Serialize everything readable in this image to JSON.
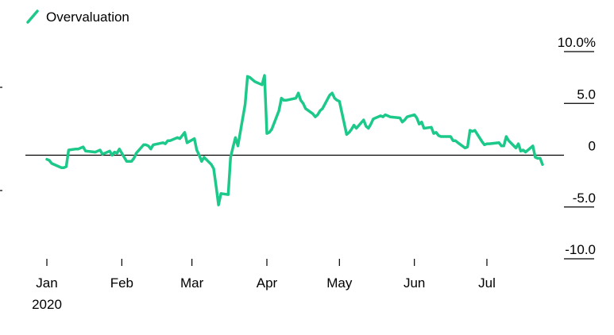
{
  "chart_data": {
    "type": "line",
    "title": "",
    "xlabel": "",
    "ylabel": "",
    "legend": {
      "position": "top-left",
      "entries": [
        "Overvaluation"
      ]
    },
    "ylim": [
      -10,
      10
    ],
    "y_ticks": [
      {
        "value": 10,
        "label": "10.0%"
      },
      {
        "value": 5,
        "label": "5.0"
      },
      {
        "value": 0,
        "label": "0"
      },
      {
        "value": -5,
        "label": "-5.0"
      },
      {
        "value": -10,
        "label": "-10.0"
      }
    ],
    "x_range": [
      "2020-01-01",
      "2020-07-24"
    ],
    "x_ticks": [
      {
        "date": "2020-01-01",
        "label": "Jan"
      },
      {
        "date": "2020-02-01",
        "label": "Feb"
      },
      {
        "date": "2020-03-01",
        "label": "Mar"
      },
      {
        "date": "2020-04-01",
        "label": "Apr"
      },
      {
        "date": "2020-05-01",
        "label": "May"
      },
      {
        "date": "2020-06-01",
        "label": "Jun"
      },
      {
        "date": "2020-07-01",
        "label": "Jul"
      }
    ],
    "x_year_label": "2020",
    "series": [
      {
        "name": "Overvaluation",
        "color": "#1DC98A",
        "points": [
          [
            "2020-01-01",
            -0.4
          ],
          [
            "2020-01-02",
            -0.5
          ],
          [
            "2020-01-03",
            -0.8
          ],
          [
            "2020-01-06",
            -1.1
          ],
          [
            "2020-01-07",
            -1.2
          ],
          [
            "2020-01-08",
            -1.2
          ],
          [
            "2020-01-09",
            -1.1
          ],
          [
            "2020-01-10",
            0.5
          ],
          [
            "2020-01-13",
            0.6
          ],
          [
            "2020-01-14",
            0.6
          ],
          [
            "2020-01-15",
            0.7
          ],
          [
            "2020-01-16",
            0.8
          ],
          [
            "2020-01-17",
            0.4
          ],
          [
            "2020-01-21",
            0.3
          ],
          [
            "2020-01-22",
            0.4
          ],
          [
            "2020-01-23",
            0.5
          ],
          [
            "2020-01-24",
            0.1
          ],
          [
            "2020-01-27",
            0.4
          ],
          [
            "2020-01-28",
            0.0
          ],
          [
            "2020-01-29",
            0.3
          ],
          [
            "2020-01-30",
            0.2
          ],
          [
            "2020-01-31",
            0.6
          ],
          [
            "2020-02-03",
            -0.6
          ],
          [
            "2020-02-04",
            -0.6
          ],
          [
            "2020-02-05",
            -0.6
          ],
          [
            "2020-02-06",
            -0.3
          ],
          [
            "2020-02-07",
            0.2
          ],
          [
            "2020-02-10",
            1.0
          ],
          [
            "2020-02-11",
            1.0
          ],
          [
            "2020-02-12",
            0.9
          ],
          [
            "2020-02-13",
            0.6
          ],
          [
            "2020-02-14",
            1.0
          ],
          [
            "2020-02-18",
            1.2
          ],
          [
            "2020-02-19",
            1.1
          ],
          [
            "2020-02-20",
            1.4
          ],
          [
            "2020-02-21",
            1.4
          ],
          [
            "2020-02-24",
            1.7
          ],
          [
            "2020-02-25",
            1.6
          ],
          [
            "2020-02-26",
            1.9
          ],
          [
            "2020-02-27",
            2.2
          ],
          [
            "2020-02-28",
            1.2
          ],
          [
            "2020-03-02",
            1.6
          ],
          [
            "2020-03-03",
            0.5
          ],
          [
            "2020-03-04",
            0.0
          ],
          [
            "2020-03-05",
            -0.6
          ],
          [
            "2020-03-06",
            -0.2
          ],
          [
            "2020-03-09",
            -0.9
          ],
          [
            "2020-03-10",
            -1.3
          ],
          [
            "2020-03-11",
            -3.0
          ],
          [
            "2020-03-12",
            -4.8
          ],
          [
            "2020-03-13",
            -3.7
          ],
          [
            "2020-03-16",
            -3.8
          ],
          [
            "2020-03-17",
            -0.2
          ],
          [
            "2020-03-18",
            0.8
          ],
          [
            "2020-03-19",
            1.7
          ],
          [
            "2020-03-20",
            0.9
          ],
          [
            "2020-03-23",
            4.9
          ],
          [
            "2020-03-24",
            7.6
          ],
          [
            "2020-03-25",
            7.5
          ],
          [
            "2020-03-26",
            7.3
          ],
          [
            "2020-03-27",
            7.1
          ],
          [
            "2020-03-30",
            6.8
          ],
          [
            "2020-03-31",
            7.7
          ],
          [
            "2020-04-01",
            2.1
          ],
          [
            "2020-04-02",
            2.2
          ],
          [
            "2020-04-03",
            2.5
          ],
          [
            "2020-04-06",
            4.3
          ],
          [
            "2020-04-07",
            5.5
          ],
          [
            "2020-04-08",
            5.3
          ],
          [
            "2020-04-09",
            5.3
          ],
          [
            "2020-04-13",
            5.5
          ],
          [
            "2020-04-14",
            6.0
          ],
          [
            "2020-04-15",
            5.3
          ],
          [
            "2020-04-16",
            5.0
          ],
          [
            "2020-04-17",
            4.5
          ],
          [
            "2020-04-20",
            4.0
          ],
          [
            "2020-04-21",
            3.7
          ],
          [
            "2020-04-22",
            3.9
          ],
          [
            "2020-04-23",
            4.3
          ],
          [
            "2020-04-24",
            4.5
          ],
          [
            "2020-04-27",
            5.8
          ],
          [
            "2020-04-28",
            6.0
          ],
          [
            "2020-04-29",
            5.5
          ],
          [
            "2020-04-30",
            5.3
          ],
          [
            "2020-05-01",
            5.2
          ],
          [
            "2020-05-04",
            2.0
          ],
          [
            "2020-05-05",
            2.2
          ],
          [
            "2020-05-06",
            2.5
          ],
          [
            "2020-05-07",
            2.9
          ],
          [
            "2020-05-08",
            2.6
          ],
          [
            "2020-05-11",
            3.4
          ],
          [
            "2020-05-12",
            2.8
          ],
          [
            "2020-05-13",
            2.6
          ],
          [
            "2020-05-14",
            3.0
          ],
          [
            "2020-05-15",
            3.5
          ],
          [
            "2020-05-18",
            3.8
          ],
          [
            "2020-05-19",
            3.7
          ],
          [
            "2020-05-20",
            3.9
          ],
          [
            "2020-05-21",
            3.8
          ],
          [
            "2020-05-22",
            3.7
          ],
          [
            "2020-05-26",
            3.6
          ],
          [
            "2020-05-27",
            3.2
          ],
          [
            "2020-05-28",
            3.4
          ],
          [
            "2020-05-29",
            3.7
          ],
          [
            "2020-06-01",
            3.9
          ],
          [
            "2020-06-02",
            3.6
          ],
          [
            "2020-06-03",
            3.0
          ],
          [
            "2020-06-04",
            3.2
          ],
          [
            "2020-06-05",
            2.6
          ],
          [
            "2020-06-08",
            2.7
          ],
          [
            "2020-06-09",
            2.1
          ],
          [
            "2020-06-10",
            2.2
          ],
          [
            "2020-06-11",
            1.9
          ],
          [
            "2020-06-12",
            1.8
          ],
          [
            "2020-06-15",
            1.8
          ],
          [
            "2020-06-16",
            1.8
          ],
          [
            "2020-06-17",
            1.4
          ],
          [
            "2020-06-18",
            1.4
          ],
          [
            "2020-06-19",
            1.2
          ],
          [
            "2020-06-22",
            0.7
          ],
          [
            "2020-06-23",
            0.8
          ],
          [
            "2020-06-24",
            2.4
          ],
          [
            "2020-06-25",
            2.3
          ],
          [
            "2020-06-26",
            2.4
          ],
          [
            "2020-06-29",
            1.3
          ],
          [
            "2020-06-30",
            1.0
          ],
          [
            "2020-07-01",
            1.1
          ],
          [
            "2020-07-02",
            1.1
          ],
          [
            "2020-07-06",
            1.2
          ],
          [
            "2020-07-07",
            0.9
          ],
          [
            "2020-07-08",
            0.9
          ],
          [
            "2020-07-09",
            1.8
          ],
          [
            "2020-07-10",
            1.4
          ],
          [
            "2020-07-13",
            0.7
          ],
          [
            "2020-07-14",
            1.1
          ],
          [
            "2020-07-15",
            0.4
          ],
          [
            "2020-07-16",
            0.5
          ],
          [
            "2020-07-17",
            0.3
          ],
          [
            "2020-07-20",
            0.9
          ],
          [
            "2020-07-21",
            -0.2
          ],
          [
            "2020-07-22",
            -0.3
          ],
          [
            "2020-07-23",
            -0.3
          ],
          [
            "2020-07-24",
            -0.9
          ]
        ]
      }
    ]
  }
}
